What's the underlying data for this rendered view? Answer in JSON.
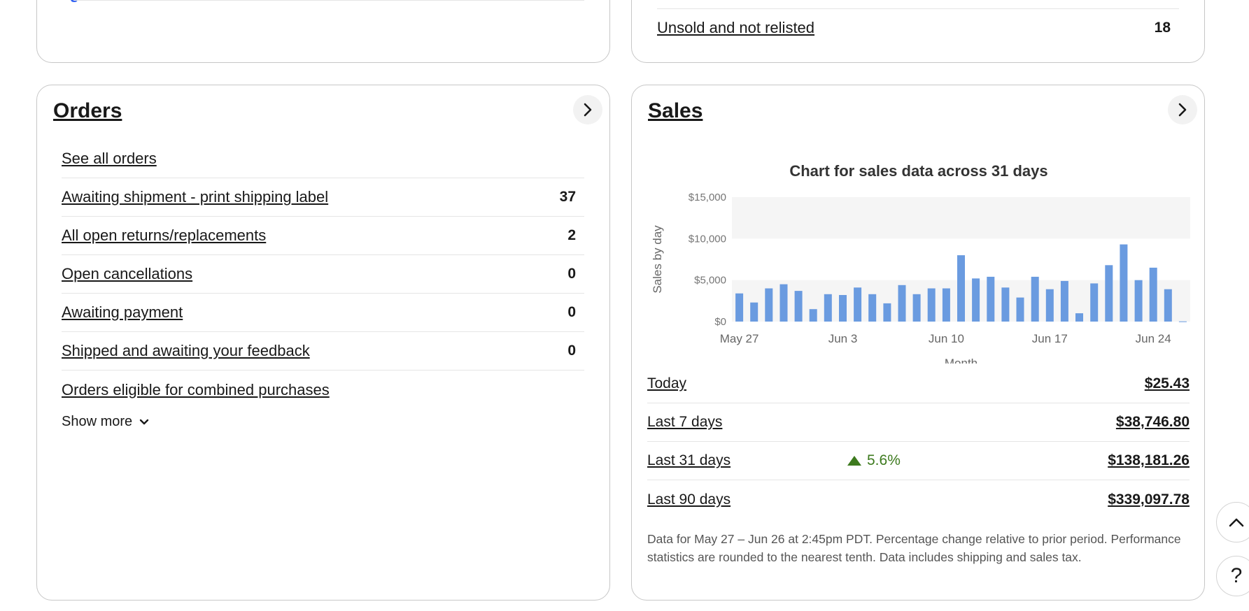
{
  "top_right": {
    "label": "Unsold and not relisted",
    "count": "18"
  },
  "orders": {
    "title": "Orders",
    "rows": [
      {
        "label": "See all orders",
        "count": ""
      },
      {
        "label": "Awaiting shipment - print shipping label",
        "count": "37"
      },
      {
        "label": "All open returns/replacements",
        "count": "2"
      },
      {
        "label": "Open cancellations",
        "count": "0"
      },
      {
        "label": "Awaiting payment",
        "count": "0"
      },
      {
        "label": "Shipped and awaiting your feedback",
        "count": "0"
      },
      {
        "label": "Orders eligible for combined purchases",
        "count": ""
      }
    ],
    "show_more": "Show more"
  },
  "sales": {
    "title": "Sales",
    "summary": [
      {
        "label": "Today",
        "amount": "$25.43",
        "change": ""
      },
      {
        "label": "Last 7 days",
        "amount": "$38,746.80",
        "change": ""
      },
      {
        "label": "Last 31 days",
        "amount": "$138,181.26",
        "change": "5.6%"
      },
      {
        "label": "Last 90 days",
        "amount": "$339,097.78",
        "change": ""
      }
    ],
    "footnote": "Data for May 27 – Jun 26 at 2:45pm PDT. Percentage change relative to prior period. Performance statistics are rounded to the nearest tenth. Data includes shipping and sales tax."
  },
  "colors": {
    "bar": "#6a9be0",
    "band": "#f5f5f5",
    "positive": "#3d7a1e"
  },
  "icons": {
    "card_nav": "chevron-right-icon",
    "scroll_top": "chevron-up-icon",
    "help": "question-mark-icon",
    "show_more": "chevron-down-icon"
  },
  "chart_data": {
    "type": "bar",
    "title": "Chart for sales data across 31 days",
    "xlabel": "Month",
    "ylabel": "Sales by day",
    "ylim": [
      0,
      15000
    ],
    "yticks": [
      "$0",
      "$5,000",
      "$10,000",
      "$15,000"
    ],
    "xticks": [
      {
        "index": 0,
        "label": "May 27"
      },
      {
        "index": 7,
        "label": "Jun 3"
      },
      {
        "index": 14,
        "label": "Jun 10"
      },
      {
        "index": 21,
        "label": "Jun 17"
      },
      {
        "index": 28,
        "label": "Jun 24"
      }
    ],
    "categories": [
      "May 27",
      "May 28",
      "May 29",
      "May 30",
      "May 31",
      "Jun 1",
      "Jun 2",
      "Jun 3",
      "Jun 4",
      "Jun 5",
      "Jun 6",
      "Jun 7",
      "Jun 8",
      "Jun 9",
      "Jun 10",
      "Jun 11",
      "Jun 12",
      "Jun 13",
      "Jun 14",
      "Jun 15",
      "Jun 16",
      "Jun 17",
      "Jun 18",
      "Jun 19",
      "Jun 20",
      "Jun 21",
      "Jun 22",
      "Jun 23",
      "Jun 24",
      "Jun 25",
      "Jun 26"
    ],
    "values": [
      3400,
      2300,
      4000,
      4500,
      3700,
      1500,
      3300,
      3200,
      4100,
      3300,
      2200,
      4400,
      3300,
      4000,
      4000,
      8000,
      5200,
      5400,
      4100,
      2900,
      5400,
      3900,
      4900,
      1000,
      4600,
      6800,
      9300,
      5000,
      6500,
      3900,
      25
    ],
    "grid": true,
    "alternating_bands": true
  }
}
